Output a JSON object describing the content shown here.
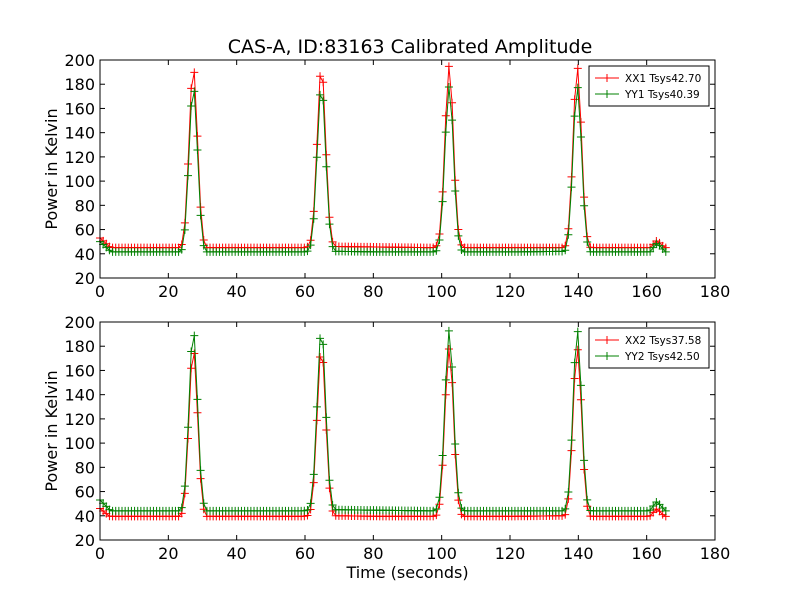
{
  "figure_title": "CAS-A, ID:83163 Calibrated Amplitude",
  "chart_data": [
    {
      "type": "line",
      "ylabel": "Power in Kelvin",
      "xlabel": "",
      "xlim": [
        0,
        180
      ],
      "ylim": [
        20,
        200
      ],
      "xticks": [
        0,
        20,
        40,
        60,
        80,
        100,
        120,
        140,
        160,
        180
      ],
      "yticks": [
        20,
        40,
        60,
        80,
        100,
        120,
        140,
        160,
        180,
        200
      ],
      "legend_position": "top-right",
      "marker": "+",
      "series": [
        {
          "name": "XX1 Tsys42.70",
          "color": "#ff0000",
          "baselines": [
            [
              0,
              53
            ],
            [
              3.5,
              44
            ],
            [
              22,
              45
            ],
            [
              31,
              43
            ],
            [
              60,
              44
            ],
            [
              69,
              46
            ],
            [
              98,
              45
            ],
            [
              106,
              45
            ],
            [
              135,
              45
            ],
            [
              144,
              43
            ],
            [
              160,
              42
            ],
            [
              163,
              51
            ],
            [
              166,
              43
            ]
          ],
          "peaks": [
            [
              27.3,
              194
            ],
            [
              64.8,
              194
            ],
            [
              102.2,
              195
            ],
            [
              139.7,
              194
            ]
          ]
        },
        {
          "name": "YY1 Tsys40.39",
          "color": "#008000",
          "baselines": [
            [
              0,
              50
            ],
            [
              3.5,
              41
            ],
            [
              22,
              41
            ],
            [
              31,
              39
            ],
            [
              60,
              41
            ],
            [
              69,
              42
            ],
            [
              98,
              41
            ],
            [
              106,
              41
            ],
            [
              135,
              42
            ],
            [
              144,
              39
            ],
            [
              160,
              38
            ],
            [
              163,
              49
            ],
            [
              166,
              40
            ]
          ],
          "peaks": [
            [
              27.3,
              178
            ],
            [
              64.8,
              178
            ],
            [
              102.2,
              178
            ],
            [
              139.7,
              178
            ]
          ]
        }
      ]
    },
    {
      "type": "line",
      "ylabel": "Power in Kelvin",
      "xlabel": "Time (seconds)",
      "xlim": [
        0,
        180
      ],
      "ylim": [
        20,
        200
      ],
      "xticks": [
        0,
        20,
        40,
        60,
        80,
        100,
        120,
        140,
        160,
        180
      ],
      "yticks": [
        20,
        40,
        60,
        80,
        100,
        120,
        140,
        160,
        180,
        200
      ],
      "legend_position": "top-right",
      "marker": "+",
      "series": [
        {
          "name": "XX2 Tsys37.58",
          "color": "#ff0000",
          "baselines": [
            [
              0,
              46
            ],
            [
              3.5,
              38
            ],
            [
              22,
              39
            ],
            [
              31,
              38
            ],
            [
              60,
              39
            ],
            [
              69,
              40
            ],
            [
              98,
              39
            ],
            [
              106,
              39
            ],
            [
              135,
              40
            ],
            [
              144,
              37
            ],
            [
              160,
              37
            ],
            [
              163,
              46
            ],
            [
              166,
              37
            ]
          ],
          "peaks": [
            [
              27.3,
              178
            ],
            [
              64.8,
              178
            ],
            [
              102.2,
              178
            ],
            [
              139.7,
              178
            ]
          ]
        },
        {
          "name": "YY2 Tsys42.50",
          "color": "#008000",
          "baselines": [
            [
              0,
              53
            ],
            [
              3.5,
              43
            ],
            [
              22,
              44
            ],
            [
              31,
              42
            ],
            [
              60,
              43
            ],
            [
              69,
              45
            ],
            [
              98,
              44
            ],
            [
              106,
              44
            ],
            [
              135,
              44
            ],
            [
              144,
              42
            ],
            [
              160,
              41
            ],
            [
              163,
              52
            ],
            [
              166,
              42
            ]
          ],
          "peaks": [
            [
              27.3,
              193
            ],
            [
              64.8,
              194
            ],
            [
              102.2,
              193
            ],
            [
              139.7,
              193
            ]
          ]
        }
      ]
    }
  ]
}
